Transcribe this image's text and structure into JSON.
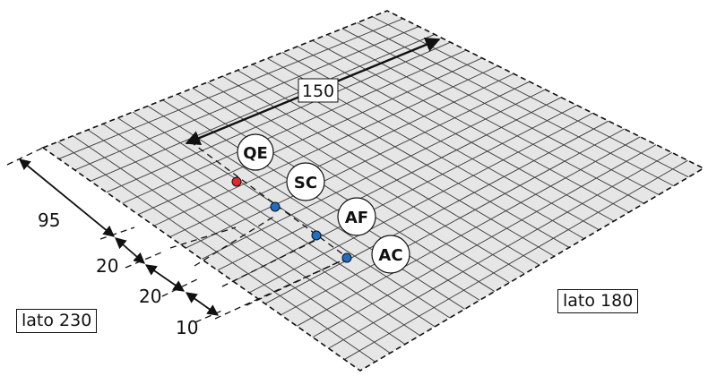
{
  "dimensions": {
    "top": "150",
    "d1": "95",
    "d2": "20",
    "d3": "20",
    "d4": "10"
  },
  "sides": {
    "left": "lato 230",
    "right": "lato 180"
  },
  "points": [
    {
      "label": "QE",
      "color": "#e02a2a"
    },
    {
      "label": "SC",
      "color": "#1e6fc4"
    },
    {
      "label": "AF",
      "color": "#1e6fc4"
    },
    {
      "label": "AC",
      "color": "#1e6fc4"
    }
  ],
  "colors": {
    "plane": "#e6e6e6",
    "grid": "#3a3a3a",
    "ink": "#111111"
  }
}
